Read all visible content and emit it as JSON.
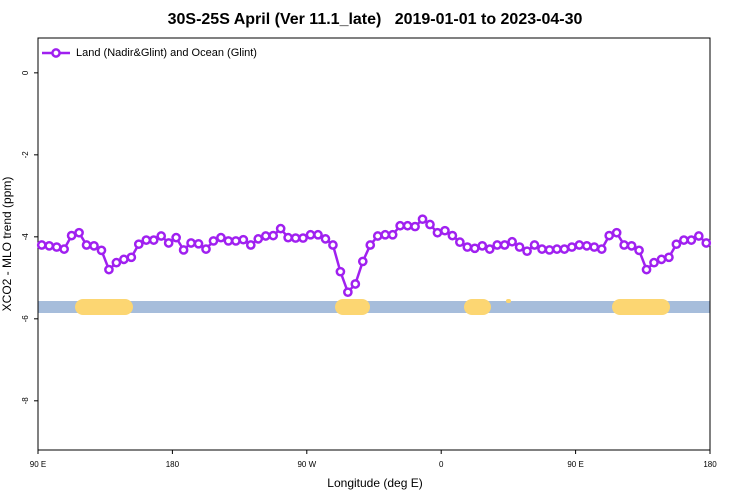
{
  "chart_data": {
    "type": "line",
    "title": "30S-25S April (Ver 11.1_late)   2019-01-01 to 2023-04-30",
    "x_label": "Longitude (deg E)",
    "y_label": "XCO2 - MLO trend (ppm)",
    "x": [
      92.5,
      97.5,
      102.5,
      107.5,
      112.5,
      117.5,
      122.5,
      127.5,
      132.5,
      137.5,
      142.5,
      147.5,
      152.5,
      157.5,
      162.5,
      167.5,
      172.5,
      177.5,
      182.5,
      187.5,
      192.5,
      197.5,
      202.5,
      207.5,
      212.5,
      217.5,
      222.5,
      227.5,
      232.5,
      237.5,
      242.5,
      247.5,
      252.5,
      257.5,
      262.5,
      267.5,
      272.5,
      277.5,
      282.5,
      287.5,
      292.5,
      297.5,
      302.5,
      307.5,
      312.5,
      317.5,
      322.5,
      327.5,
      332.5,
      337.5,
      342.5,
      347.5,
      352.5,
      357.5,
      362.5,
      367.5,
      372.5,
      377.5,
      382.5,
      387.5,
      392.5,
      397.5,
      402.5,
      407.5,
      412.5,
      417.5,
      422.5,
      427.5,
      432.5,
      437.5,
      442.5,
      447.5,
      452.5,
      457.5,
      462.5,
      467.5,
      472.5,
      477.5,
      482.5,
      487.5,
      492.5,
      497.5,
      502.5,
      507.5,
      512.5,
      517.5,
      522.5,
      527.5,
      532.5,
      537.5
    ],
    "series": [
      {
        "name": "Land (Nadir&Glint) and Ocean (Glint)",
        "color": "#a020f0",
        "values": [
          -4.2,
          -4.22,
          -4.25,
          -4.3,
          -3.97,
          -3.9,
          -4.2,
          -4.22,
          -4.33,
          -4.8,
          -4.63,
          -4.55,
          -4.5,
          -4.18,
          -4.08,
          -4.08,
          -3.98,
          -4.15,
          -4.02,
          -4.32,
          -4.15,
          -4.17,
          -4.3,
          -4.1,
          -4.02,
          -4.1,
          -4.1,
          -4.07,
          -4.2,
          -4.05,
          -3.98,
          -3.97,
          -3.8,
          -4.02,
          -4.03,
          -4.03,
          -3.95,
          -3.95,
          -4.05,
          -4.2,
          -4.85,
          -5.35,
          -5.15,
          -4.6,
          -4.2,
          -3.98,
          -3.95,
          -3.95,
          -3.73,
          -3.73,
          -3.75,
          -3.57,
          -3.7,
          -3.9,
          -3.85,
          -3.97,
          -4.13,
          -4.25,
          -4.28,
          -4.22,
          -4.3,
          -4.2,
          -4.2,
          -4.12,
          -4.25,
          -4.35,
          -4.2,
          -4.3,
          -4.32,
          -4.3,
          -4.3,
          -4.25,
          -4.2,
          -4.22,
          -4.25,
          -4.3,
          -3.97,
          -3.9,
          -4.2,
          -4.22,
          -4.33,
          -4.8,
          -4.63,
          -4.55,
          -4.5,
          -4.18,
          -4.08,
          -4.08,
          -3.98,
          -4.15
        ]
      }
    ],
    "xlim": [
      90,
      540
    ],
    "xticks": [
      {
        "value": 90,
        "label": "90 E"
      },
      180,
      {
        "value": 270,
        "label": "90 W"
      },
      {
        "value": 360,
        "label": "0"
      },
      {
        "value": 450,
        "label": "90 E"
      },
      {
        "value": 540,
        "label": "180"
      }
    ],
    "ylim": [
      -9.2,
      0.85
    ],
    "yticks": [
      0,
      -2,
      -4,
      -6,
      -8
    ],
    "legend": "upper left"
  }
}
